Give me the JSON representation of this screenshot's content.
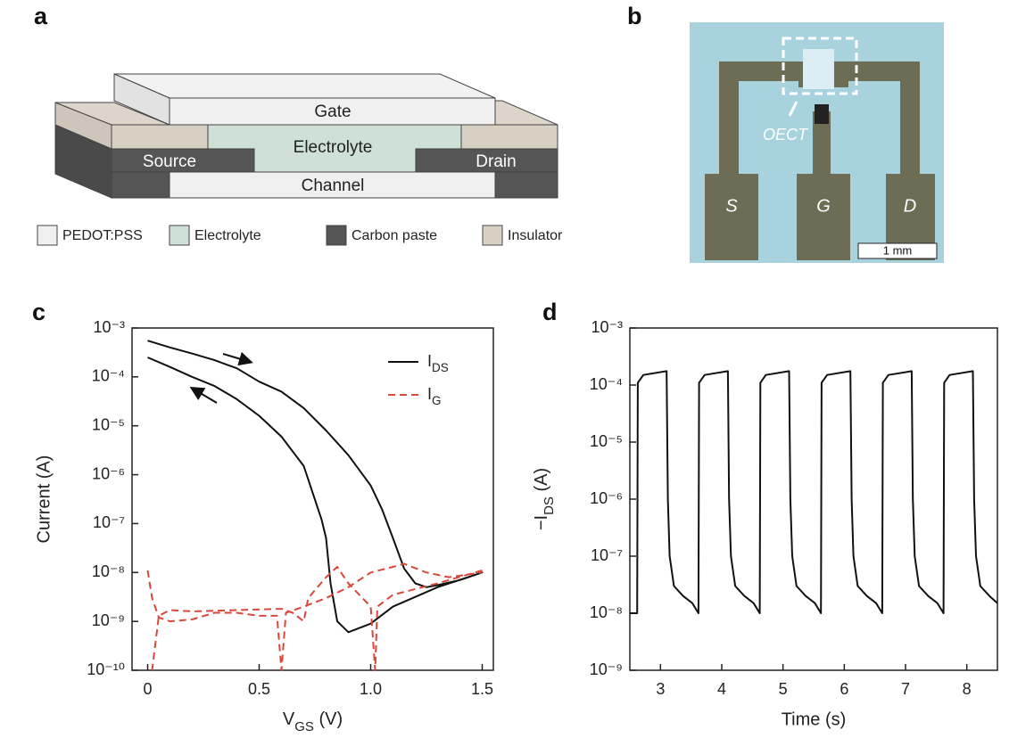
{
  "panel_labels": [
    "a",
    "b",
    "c",
    "d"
  ],
  "diagram": {
    "gate": "Gate",
    "electrolyte": "Electrolyte",
    "source": "Source",
    "drain": "Drain",
    "channel": "Channel",
    "legend": [
      "PEDOT:PSS",
      "Electrolyte",
      "Carbon paste",
      "Insulator"
    ]
  },
  "photo": {
    "source": "S",
    "gate": "G",
    "drain": "D",
    "device": "OECT",
    "scale_bar": "1 mm"
  },
  "chart_data": [
    {
      "type": "line",
      "yscale": "log",
      "legend": "upper right",
      "xlabel": {
        "main": "V",
        "sub": "GS",
        "unit": " (V)"
      },
      "ylabel": "Current (A)",
      "xlim": [
        -0.07,
        1.55
      ],
      "xticks": [
        0,
        0.5,
        {
          "value": 1,
          "label": "1.0"
        },
        1.5
      ],
      "ylim": [
        1e-10,
        0.001
      ],
      "yticks": [
        {
          "value": 0.001,
          "label": "10⁻³"
        },
        {
          "value": 0.0001,
          "label": "10⁻⁴"
        },
        {
          "value": 1e-05,
          "label": "10⁻⁵"
        },
        {
          "value": 1e-06,
          "label": "10⁻⁶"
        },
        {
          "value": 1e-07,
          "label": "10⁻⁷"
        },
        {
          "value": 1e-08,
          "label": "10⁻⁸"
        },
        {
          "value": 1e-09,
          "label": "10⁻⁹"
        },
        {
          "value": 1e-10,
          "label": "10⁻¹⁰"
        }
      ],
      "series": [
        {
          "name": "I",
          "name_sub": "DS",
          "color": "#111111",
          "dashed": false,
          "x": [
            0,
            0.1,
            0.2,
            0.3,
            0.4,
            0.5,
            0.6,
            0.7,
            0.8,
            0.9,
            1.0,
            1.05,
            1.1,
            1.15,
            1.2,
            1.25,
            1.3,
            1.4,
            1.5,
            1.3,
            1.1,
            1.0,
            0.9,
            0.85,
            0.82,
            0.8,
            0.78,
            0.7,
            0.6,
            0.5,
            0.4,
            0.3,
            0.2,
            0.1,
            0
          ],
          "values": [
            0.00055,
            0.0004,
            0.0003,
            0.00022,
            0.00015,
            8e-05,
            5e-05,
            2.3e-05,
            8e-06,
            2.5e-06,
            6e-07,
            2e-07,
            5e-08,
            1.2e-08,
            6e-09,
            5e-09,
            5.5e-09,
            7e-09,
            1e-08,
            5e-09,
            2e-09,
            9e-10,
            6e-10,
            1e-09,
            6e-09,
            5e-08,
            1.2e-07,
            1.5e-06,
            6e-06,
            1.6e-05,
            3.5e-05,
            6.5e-05,
            0.0001,
            0.00016,
            0.00025
          ]
        },
        {
          "name": "I",
          "name_sub": "G",
          "color": "#d9473a",
          "dashed": true,
          "x": [
            0,
            0.02,
            0.05,
            0.1,
            0.2,
            0.3,
            0.4,
            0.5,
            0.58,
            0.6,
            0.62,
            0.7,
            0.8,
            0.9,
            1.0,
            1.1,
            1.15,
            1.25,
            1.35,
            1.5,
            null,
            1.5,
            1.3,
            1.1,
            1.03,
            1.02,
            1.0,
            0.9,
            0.85,
            0.8,
            0.72,
            0.7,
            0.65,
            0.6,
            0.4,
            0.2,
            0.1,
            0.05,
            0.02
          ],
          "values": [
            1.1e-08,
            3e-09,
            1.2e-09,
            1e-09,
            1.1e-09,
            1.5e-09,
            1.5e-09,
            1.3e-09,
            1.3e-09,
            1e-10,
            1.5e-09,
            2e-09,
            3e-09,
            5e-09,
            1e-08,
            1.3e-08,
            1.5e-08,
            1e-08,
            8e-09,
            1e-08,
            null,
            1.1e-08,
            6e-09,
            3.5e-09,
            2e-09,
            1e-10,
            2e-09,
            6e-09,
            1.3e-08,
            8e-09,
            3e-09,
            1e-09,
            1.5e-09,
            1.8e-09,
            1.7e-09,
            1.6e-09,
            1.7e-09,
            1.3e-09,
            1e-10
          ]
        }
      ]
    },
    {
      "type": "line",
      "yscale": "log",
      "xlabel": "Time (s)",
      "ylabel": {
        "main": "−I",
        "sub": "DS",
        "unit": " (A)"
      },
      "xlim": [
        2.5,
        8.5
      ],
      "xticks": [
        3,
        4,
        5,
        6,
        7,
        8
      ],
      "ylim": [
        1e-09,
        0.001
      ],
      "yticks": [
        {
          "value": 0.001,
          "label": "10⁻³"
        },
        {
          "value": 0.0001,
          "label": "10⁻⁴"
        },
        {
          "value": 1e-05,
          "label": "10⁻⁵"
        },
        {
          "value": 1e-06,
          "label": "10⁻⁶"
        },
        {
          "value": 1e-07,
          "label": "10⁻⁷"
        },
        {
          "value": 1e-08,
          "label": "10⁻⁸"
        },
        {
          "value": 1e-09,
          "label": "10⁻⁹"
        }
      ],
      "series": [
        {
          "color": "#111111",
          "dashed": false,
          "x": [
            2.5,
            2.62,
            2.63,
            2.72,
            3.1,
            3.12,
            3.15,
            3.22,
            3.37,
            3.52,
            3.62,
            3.63,
            3.72,
            4.1,
            4.12,
            4.15,
            4.22,
            4.37,
            4.52,
            4.62,
            4.63,
            4.72,
            5.1,
            5.12,
            5.15,
            5.22,
            5.37,
            5.52,
            5.62,
            5.63,
            5.72,
            6.1,
            6.12,
            6.15,
            6.22,
            6.37,
            6.52,
            6.62,
            6.63,
            6.72,
            7.1,
            7.12,
            7.15,
            7.22,
            7.37,
            7.52,
            7.62,
            7.63,
            7.72,
            8.1,
            8.12,
            8.15,
            8.22,
            8.37,
            8.5
          ],
          "values": [
            1e-08,
            1e-08,
            0.00011,
            0.00015,
            0.000175,
            1e-06,
            1e-07,
            3e-08,
            2e-08,
            1.5e-08,
            1e-08,
            0.00011,
            0.00015,
            0.000175,
            1e-06,
            1e-07,
            3e-08,
            2e-08,
            1.5e-08,
            1e-08,
            0.00011,
            0.00015,
            0.000175,
            1e-06,
            1e-07,
            3e-08,
            2e-08,
            1.5e-08,
            1e-08,
            0.00011,
            0.00015,
            0.000175,
            1e-06,
            1e-07,
            3e-08,
            2e-08,
            1.5e-08,
            1e-08,
            0.00011,
            0.00015,
            0.000175,
            1e-06,
            1e-07,
            3e-08,
            2e-08,
            1.5e-08,
            1e-08,
            0.00011,
            0.00015,
            0.000175,
            1e-06,
            1e-07,
            3e-08,
            2e-08,
            1.5e-08
          ]
        }
      ]
    }
  ]
}
